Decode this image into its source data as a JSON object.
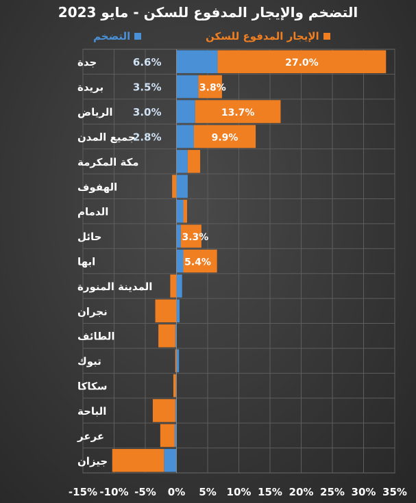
{
  "chart_data": {
    "type": "bar",
    "orientation": "horizontal",
    "stacked": true,
    "title": "التضخم والإيجار المدفوع للسكن - مايو 2023",
    "categories": [
      "جدة",
      "بريدة",
      "الرياض",
      "جميع المدن",
      "مكة المكرمة",
      "الهفوف",
      "الدمام",
      "حائل",
      "ابها",
      "المدينة المنورة",
      "نجران",
      "الطائف",
      "تبوك",
      "سكاكا",
      "الباحة",
      "عرعر",
      "جيزان"
    ],
    "series": [
      {
        "name": "التضخم",
        "color": "#4a90d6",
        "values": [
          6.6,
          3.5,
          3.0,
          2.8,
          1.8,
          1.8,
          1.1,
          0.7,
          1.1,
          0.9,
          0.5,
          -0.2,
          0.4,
          -0.1,
          -0.2,
          -0.3,
          -2.0
        ],
        "labels": [
          "6.6%",
          "3.5%",
          "3.0%",
          "2.8%",
          "",
          "",
          "",
          "",
          "",
          "",
          "",
          "",
          "",
          "",
          "",
          "",
          ""
        ]
      },
      {
        "name": "الإيجار المدفوع للسكن",
        "color": "#f07f22",
        "values": [
          27.0,
          3.8,
          13.7,
          9.9,
          2.0,
          -0.7,
          0.6,
          3.3,
          5.4,
          -1.0,
          -3.4,
          -2.7,
          -0.2,
          -0.4,
          -3.6,
          -2.3,
          -8.3
        ],
        "labels": [
          "27.0%",
          "3.8%",
          "13.7%",
          "9.9%",
          "",
          "",
          "",
          "3.3%",
          "5.4%",
          "",
          "",
          "",
          "",
          "",
          "",
          "",
          ""
        ]
      }
    ],
    "xlim": [
      -15,
      35
    ],
    "xticks": [
      "-15%",
      "-10%",
      "-5%",
      "0%",
      "5%",
      "10%",
      "15%",
      "20%",
      "25%",
      "30%",
      "35%"
    ],
    "grid": true,
    "legend_position": "top"
  }
}
